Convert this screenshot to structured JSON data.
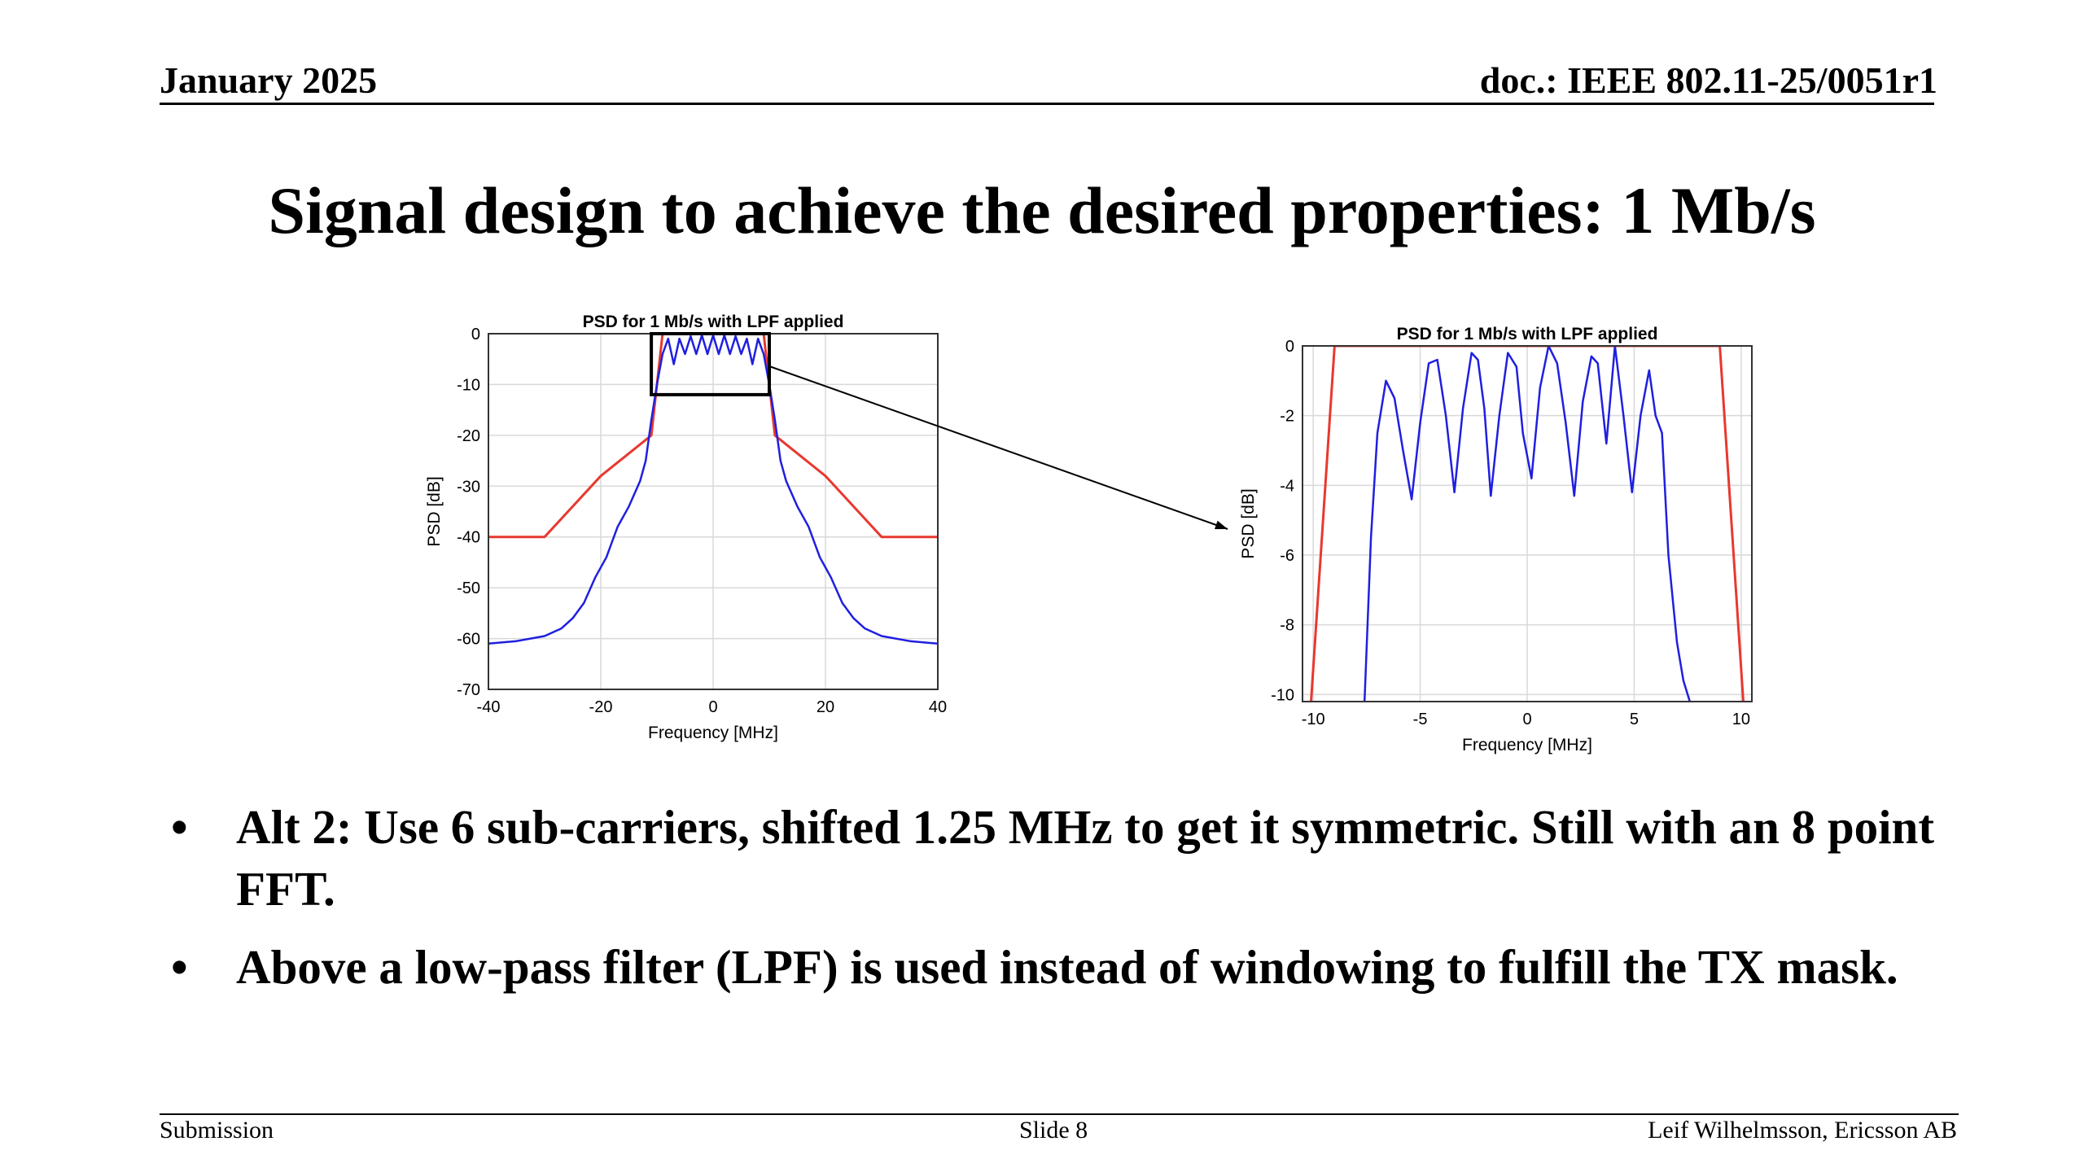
{
  "header": {
    "date": "January 2025",
    "doc": "doc.: IEEE 802.11-25/0051r1"
  },
  "title": "Signal design to achieve the desired properties: 1 Mb/s",
  "bullets": [
    "Alt 2: Use 6 sub-carriers, shifted 1.25 MHz to get it symmetric. Still with an 8 point FFT.",
    "Above a low-pass filter (LPF) is used instead of windowing to fulfill the TX mask."
  ],
  "footer": {
    "left": "Submission",
    "center": "Slide 8",
    "right": "Leif Wilhelmsson, Ericsson AB"
  },
  "colors": {
    "mask": "#e8382f",
    "psd": "#1f1fe0",
    "grid": "#d9d9d9"
  },
  "chart_data": [
    {
      "type": "line",
      "title": "PSD for 1 Mb/s with LPF applied",
      "xlabel": "Frequency [MHz]",
      "ylabel": "PSD [dB]",
      "xlim": [
        -40,
        40
      ],
      "ylim": [
        -70,
        0
      ],
      "xticks": [
        -40,
        -20,
        0,
        20,
        40
      ],
      "yticks": [
        0,
        -10,
        -20,
        -30,
        -40,
        -50,
        -60,
        -70
      ],
      "grid": true,
      "zoom_box": {
        "x": [
          -11,
          10
        ],
        "y": [
          -12,
          0
        ]
      },
      "series": [
        {
          "role": "mask",
          "x": [
            -40,
            -30,
            -20,
            -11,
            -9,
            9,
            11,
            20,
            30,
            40
          ],
          "y": [
            -40,
            -40,
            -28,
            -20,
            0,
            0,
            -20,
            -28,
            -40,
            -40
          ]
        },
        {
          "role": "psd",
          "x": [
            -40,
            -35,
            -30,
            -27,
            -25,
            -23,
            -21,
            -19,
            -17,
            -15,
            -13,
            -12,
            -11,
            -10,
            -9,
            -8,
            -7,
            -6,
            -5,
            -4,
            -3,
            -2,
            -1,
            0,
            1,
            2,
            3,
            4,
            5,
            6,
            7,
            8,
            9,
            10,
            11,
            12,
            13,
            15,
            17,
            19,
            21,
            23,
            25,
            27,
            30,
            35,
            40
          ],
          "y": [
            -61,
            -60.5,
            -59.5,
            -58,
            -56,
            -53,
            -48,
            -44,
            -38,
            -34,
            -29,
            -25,
            -17,
            -10,
            -4,
            -1,
            -6,
            -1,
            -4,
            -0.5,
            -4,
            -0.3,
            -4,
            -0.3,
            -4,
            -0.3,
            -4,
            -0.5,
            -4,
            -1,
            -6,
            -1,
            -4,
            -10,
            -17,
            -25,
            -29,
            -34,
            -38,
            -44,
            -48,
            -53,
            -56,
            -58,
            -59.5,
            -60.5,
            -61
          ]
        }
      ]
    },
    {
      "type": "line",
      "title": "PSD for 1 Mb/s with LPF applied",
      "xlabel": "Frequency [MHz]",
      "ylabel": "PSD [dB]",
      "xlim": [
        -10.5,
        10.5
      ],
      "ylim": [
        -10.2,
        0
      ],
      "xticks": [
        -10,
        -5,
        0,
        5,
        10
      ],
      "yticks": [
        0,
        -2,
        -4,
        -6,
        -8,
        -10
      ],
      "grid": true,
      "series": [
        {
          "role": "mask",
          "x": [
            -10.1,
            -9.0,
            9.0,
            10.1
          ],
          "y": [
            -10.2,
            0,
            0,
            -10.2
          ]
        },
        {
          "role": "psd",
          "x": [
            -7.6,
            -7.3,
            -7.0,
            -6.6,
            -6.2,
            -5.8,
            -5.4,
            -5.0,
            -4.6,
            -4.2,
            -3.8,
            -3.4,
            -3.0,
            -2.6,
            -2.3,
            -2.0,
            -1.7,
            -1.3,
            -0.9,
            -0.5,
            -0.2,
            0.2,
            0.6,
            1.0,
            1.4,
            1.8,
            2.2,
            2.6,
            3.0,
            3.3,
            3.7,
            4.1,
            4.5,
            4.9,
            5.3,
            5.7,
            6.0,
            6.3,
            6.6,
            7.0,
            7.3,
            7.6
          ],
          "y": [
            -10.2,
            -5.5,
            -2.5,
            -1.0,
            -1.5,
            -3.0,
            -4.4,
            -2.2,
            -0.5,
            -0.4,
            -2.0,
            -4.2,
            -1.8,
            -0.2,
            -0.4,
            -1.8,
            -4.3,
            -2.0,
            -0.2,
            -0.6,
            -2.5,
            -3.8,
            -1.2,
            0,
            -0.5,
            -2.2,
            -4.3,
            -1.6,
            -0.3,
            -0.5,
            -2.8,
            0,
            -2.0,
            -4.2,
            -2.0,
            -0.7,
            -2.0,
            -2.5,
            -6.0,
            -8.5,
            -9.6,
            -10.2
          ]
        }
      ]
    }
  ]
}
